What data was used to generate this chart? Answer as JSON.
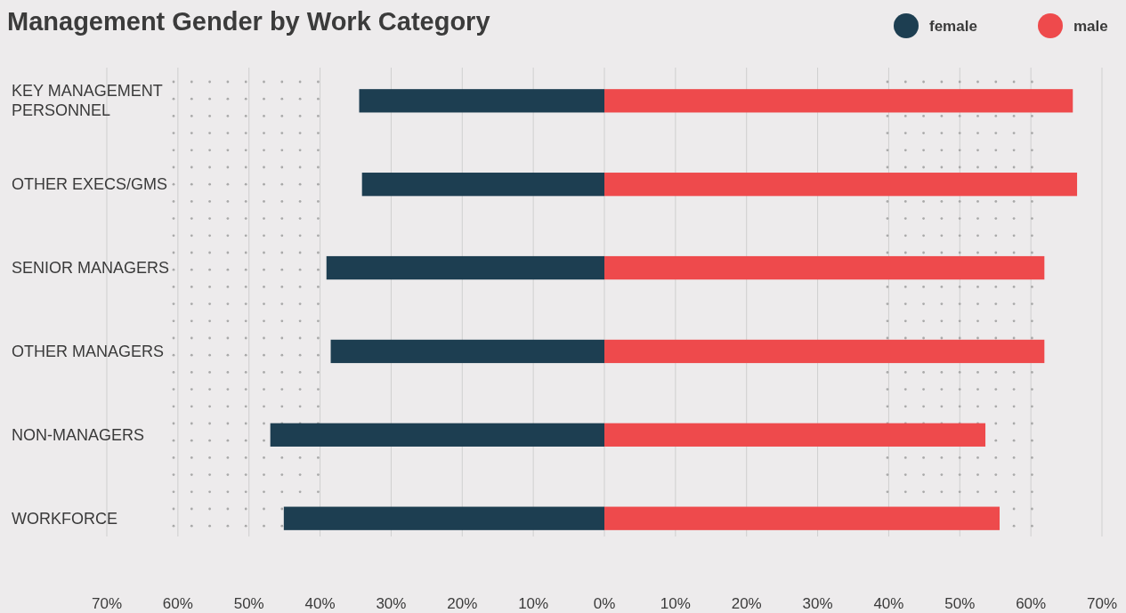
{
  "chart_data": {
    "type": "bar",
    "orientation": "horizontal",
    "stacked": true,
    "title": "Management Gender by Work Category",
    "categories": [
      "KEY MANAGEMENT PERSONNEL",
      "OTHER EXECS/GMS",
      "SENIOR MANAGERS",
      "OTHER MANAGERS",
      "NON-MANAGERS",
      "WORKFORCE"
    ],
    "series": [
      {
        "name": "female",
        "color": "#1d3e51",
        "values": [
          -34.5,
          -34.1,
          -39.1,
          -38.5,
          -47.0,
          -45.1
        ]
      },
      {
        "name": "male",
        "color": "#ee4a4c",
        "values": [
          65.9,
          66.5,
          61.9,
          61.9,
          53.6,
          55.6
        ]
      }
    ],
    "xlim": [
      -70,
      70
    ],
    "xticks": [
      {
        "value": -70,
        "label": "70%"
      },
      {
        "value": -60,
        "label": "60%"
      },
      {
        "value": -50,
        "label": "50%"
      },
      {
        "value": -40,
        "label": "40%"
      },
      {
        "value": -30,
        "label": "30%"
      },
      {
        "value": -20,
        "label": "20%"
      },
      {
        "value": -10,
        "label": "10%"
      },
      {
        "value": 0,
        "label": "0%"
      },
      {
        "value": 10,
        "label": "10%"
      },
      {
        "value": 20,
        "label": "20%"
      },
      {
        "value": 30,
        "label": "30%"
      },
      {
        "value": 40,
        "label": "40%"
      },
      {
        "value": 50,
        "label": "50%"
      },
      {
        "value": 60,
        "label": "60%"
      },
      {
        "value": 70,
        "label": "70%"
      }
    ],
    "grid": "x",
    "legend": "top right"
  }
}
